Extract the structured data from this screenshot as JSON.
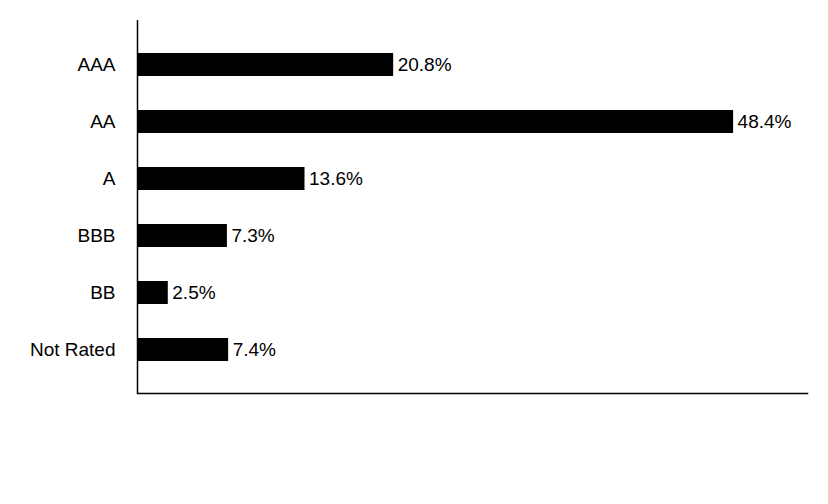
{
  "chart_data": {
    "type": "bar",
    "orientation": "horizontal",
    "categories": [
      "AAA",
      "AA",
      "A",
      "BBB",
      "BB",
      "Not Rated"
    ],
    "values": [
      20.8,
      48.4,
      13.6,
      7.3,
      2.5,
      7.4
    ],
    "value_labels": [
      "20.8%",
      "48.4%",
      "13.6%",
      "7.3%",
      "2.5%",
      "7.4%"
    ],
    "color": "#000000",
    "xlim": [
      0,
      54.4
    ],
    "xticks": [],
    "grid": false,
    "data_labels": true,
    "tick_labels": "y"
  }
}
